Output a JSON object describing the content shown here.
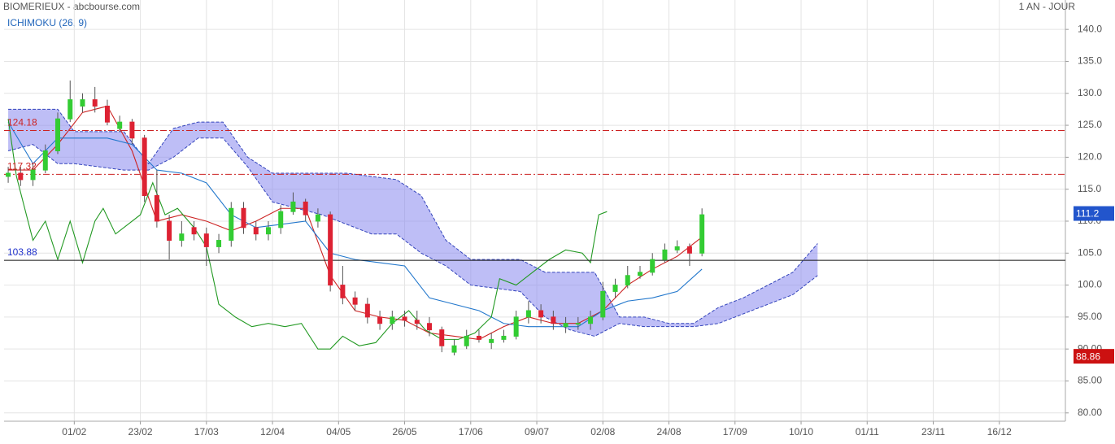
{
  "chart_data": {
    "type": "candlestick",
    "title": "BIOMERIEUX - abcbourse.com",
    "period": "1 AN - JOUR",
    "indicator": "ICHIMOKU (26, 9)",
    "xlim": [
      -17,
      240
    ],
    "ylim": [
      78.7,
      144.6
    ],
    "xticks": [
      {
        "value": 0,
        "label": "01/02"
      },
      {
        "value": 16,
        "label": "23/02"
      },
      {
        "value": 32,
        "label": "17/03"
      },
      {
        "value": 48,
        "label": "12/04"
      },
      {
        "value": 64,
        "label": "04/05"
      },
      {
        "value": 80,
        "label": "26/05"
      },
      {
        "value": 96,
        "label": "17/06"
      },
      {
        "value": 112,
        "label": "09/07"
      },
      {
        "value": 128,
        "label": "02/08"
      },
      {
        "value": 144,
        "label": "24/08"
      },
      {
        "value": 160,
        "label": "17/09"
      },
      {
        "value": 176,
        "label": "10/10"
      },
      {
        "value": 192,
        "label": "01/11"
      },
      {
        "value": 208,
        "label": "23/11"
      },
      {
        "value": 224,
        "label": "16/12"
      }
    ],
    "yticks": [
      {
        "value": 80,
        "label": "80.00"
      },
      {
        "value": 85,
        "label": "85.00"
      },
      {
        "value": 90,
        "label": "90.00"
      },
      {
        "value": 95,
        "label": "95.00"
      },
      {
        "value": 100,
        "label": "100.0"
      },
      {
        "value": 105,
        "label": "105.0"
      },
      {
        "value": 110,
        "label": "110.0"
      },
      {
        "value": 115,
        "label": "115.0"
      },
      {
        "value": 120,
        "label": "120.0"
      },
      {
        "value": 125,
        "label": "125.0"
      },
      {
        "value": 130,
        "label": "130.0"
      },
      {
        "value": 135,
        "label": "135.0"
      },
      {
        "value": 140,
        "label": "140.0"
      }
    ],
    "grid": true,
    "up_color": "#33cc33",
    "down_color": "#dd2233",
    "x": [
      -16,
      -13,
      -10,
      -7,
      -4,
      -1,
      2,
      5,
      8,
      11,
      14,
      17,
      20,
      23,
      26,
      29,
      32,
      35,
      38,
      41,
      44,
      47,
      50,
      53,
      56,
      59,
      62,
      65,
      68,
      71,
      74,
      77,
      80,
      83,
      86,
      89,
      92,
      95,
      98,
      101,
      104,
      107,
      110,
      113,
      116,
      119,
      122,
      125,
      128,
      131,
      134,
      137,
      140,
      143,
      146,
      149,
      152
    ],
    "open": [
      117,
      117.5,
      116.5,
      118,
      121,
      126,
      128,
      129,
      128,
      124.5,
      125.5,
      123,
      114,
      110,
      107,
      109,
      108,
      106,
      107,
      112,
      109,
      108,
      109,
      111.5,
      113,
      110,
      111,
      100,
      98,
      97,
      95,
      94,
      95,
      94.5,
      94,
      93,
      89.5,
      90.5,
      92,
      91,
      91.5,
      92,
      95,
      96,
      95,
      93.5,
      94,
      94,
      95,
      99,
      100,
      101.5,
      102,
      104,
      105.5,
      106,
      105
    ],
    "high": [
      118.5,
      118.5,
      119,
      122,
      127,
      132,
      130,
      131,
      129,
      126.5,
      126,
      123.5,
      118,
      111,
      110,
      110,
      109,
      108,
      113,
      113,
      110,
      110,
      112.5,
      114.5,
      113.5,
      112,
      111.5,
      103,
      99,
      98,
      96,
      96,
      96,
      96,
      95,
      93.5,
      91.5,
      93,
      93,
      92.5,
      93,
      96,
      97.5,
      97,
      96,
      95,
      95,
      96,
      100.5,
      101,
      103,
      103,
      105,
      106.5,
      107,
      106.5,
      112
    ],
    "low": [
      116,
      115.5,
      115.5,
      117.5,
      120.5,
      125.5,
      127,
      127,
      125,
      124,
      122,
      113,
      109,
      104,
      106,
      107,
      103,
      105,
      106,
      108,
      107,
      107,
      108,
      111,
      110,
      109,
      99,
      97,
      96,
      94,
      93,
      93,
      93.5,
      93,
      92,
      89.5,
      89,
      90,
      91,
      90,
      91,
      91.5,
      94,
      94,
      93,
      92.5,
      93,
      93,
      94.5,
      98,
      99.5,
      101,
      101.5,
      103.5,
      105,
      103,
      104.5
    ],
    "close": [
      117.5,
      116.5,
      118,
      121,
      126,
      129,
      129,
      128,
      125.5,
      125.5,
      123,
      114,
      110,
      107,
      108,
      108,
      106,
      107,
      112,
      109,
      108,
      109,
      111.5,
      113,
      111,
      111,
      100,
      98,
      97,
      95,
      94,
      95,
      94.5,
      94,
      93,
      90.5,
      90.5,
      92,
      91.5,
      91.5,
      92,
      95,
      96,
      95,
      94,
      94,
      94,
      95,
      99,
      100,
      101.5,
      102,
      104,
      105.5,
      106,
      105,
      111
    ],
    "lines": [
      {
        "color": "#cc2222",
        "x": [
          -16,
          -10,
          -4,
          2,
          8,
          14,
          20,
          26,
          32,
          38,
          44,
          50,
          56,
          62,
          68,
          74,
          80,
          86,
          92,
          98,
          104,
          110,
          116,
          122,
          128,
          134,
          140,
          146,
          152
        ],
        "values": [
          118,
          118,
          122,
          127,
          128,
          121,
          110,
          111,
          110,
          108.5,
          110,
          112,
          112,
          101.5,
          96,
          95,
          94.5,
          92.5,
          92,
          91.5,
          93.5,
          95,
          94,
          94,
          96,
          100,
          102.5,
          104.5,
          107.5
        ]
      },
      {
        "color": "#2277cc",
        "x": [
          -16,
          -10,
          -4,
          2,
          8,
          14,
          20,
          26,
          32,
          38,
          44,
          50,
          56,
          62,
          68,
          74,
          80,
          86,
          92,
          98,
          104,
          110,
          116,
          122,
          128,
          134,
          140,
          146,
          152
        ],
        "values": [
          125.5,
          119,
          123,
          123,
          123,
          122,
          118,
          117.5,
          116,
          111,
          109,
          109.5,
          110,
          105,
          104,
          103.5,
          103,
          98,
          97,
          96,
          94,
          93.5,
          93.5,
          93.5,
          96,
          97.5,
          98,
          99,
          102.5
        ]
      },
      {
        "color": "#229922",
        "x": [
          -16,
          -14,
          -12,
          -10,
          -7,
          -4,
          -1,
          2,
          5,
          7,
          10,
          13,
          16,
          19,
          22,
          25,
          29,
          32,
          35,
          39,
          43,
          47,
          51,
          55,
          59,
          62,
          65,
          69,
          73,
          77,
          81,
          85,
          89,
          93,
          97,
          101,
          103,
          107,
          111,
          115,
          119,
          123,
          125,
          127,
          129
        ],
        "values": [
          126,
          117,
          112,
          107,
          110,
          104,
          110,
          103.5,
          110,
          112,
          108,
          109.5,
          111,
          116,
          111,
          112,
          109,
          106,
          97,
          95,
          93.5,
          94,
          93.5,
          94,
          90,
          90,
          92,
          90.5,
          91,
          94,
          96,
          93,
          91.5,
          91.5,
          92.5,
          95,
          101,
          100,
          102,
          104,
          105.5,
          105,
          103.5,
          111,
          111.5
        ]
      }
    ],
    "cloud": {
      "color": "#8888ee",
      "edge": "#3344bb",
      "x": [
        -16,
        -10,
        -4,
        0,
        6,
        12,
        18,
        24,
        30,
        36,
        42,
        48,
        54,
        60,
        66,
        72,
        78,
        84,
        90,
        96,
        102,
        108,
        114,
        120,
        126,
        132,
        138,
        144,
        150,
        156,
        162,
        168,
        174,
        180
      ],
      "span_a": [
        127.5,
        127.5,
        127.5,
        124,
        124,
        124,
        119,
        124.5,
        125.5,
        125.5,
        120,
        117.5,
        117.5,
        117.5,
        117.5,
        117,
        116.5,
        114,
        107,
        104,
        104,
        104,
        102,
        102,
        102,
        95,
        95,
        94,
        94,
        96.5,
        98,
        100,
        102,
        106.5
      ],
      "span_b": [
        121,
        122,
        119,
        119,
        118.5,
        118,
        118,
        120,
        123,
        123,
        118.5,
        113,
        112,
        111,
        109.5,
        108,
        108,
        105,
        103,
        100,
        99.5,
        99,
        95,
        93,
        92,
        94,
        93.5,
        93.5,
        93.5,
        94,
        95.5,
        97,
        98.5,
        101.5
      ]
    },
    "hlines": [
      {
        "value": 124.18,
        "color": "#cc2222",
        "dashed": true
      },
      {
        "value": 117.32,
        "color": "#cc2222",
        "dashed": true
      },
      {
        "value": 103.88,
        "color": "#111111",
        "label_color": "#2233cc",
        "dashed": false
      }
    ],
    "price_labels": [
      {
        "value": 111.2,
        "color": "#2255cc"
      },
      {
        "value": 88.86,
        "color": "#cc1111"
      }
    ]
  }
}
